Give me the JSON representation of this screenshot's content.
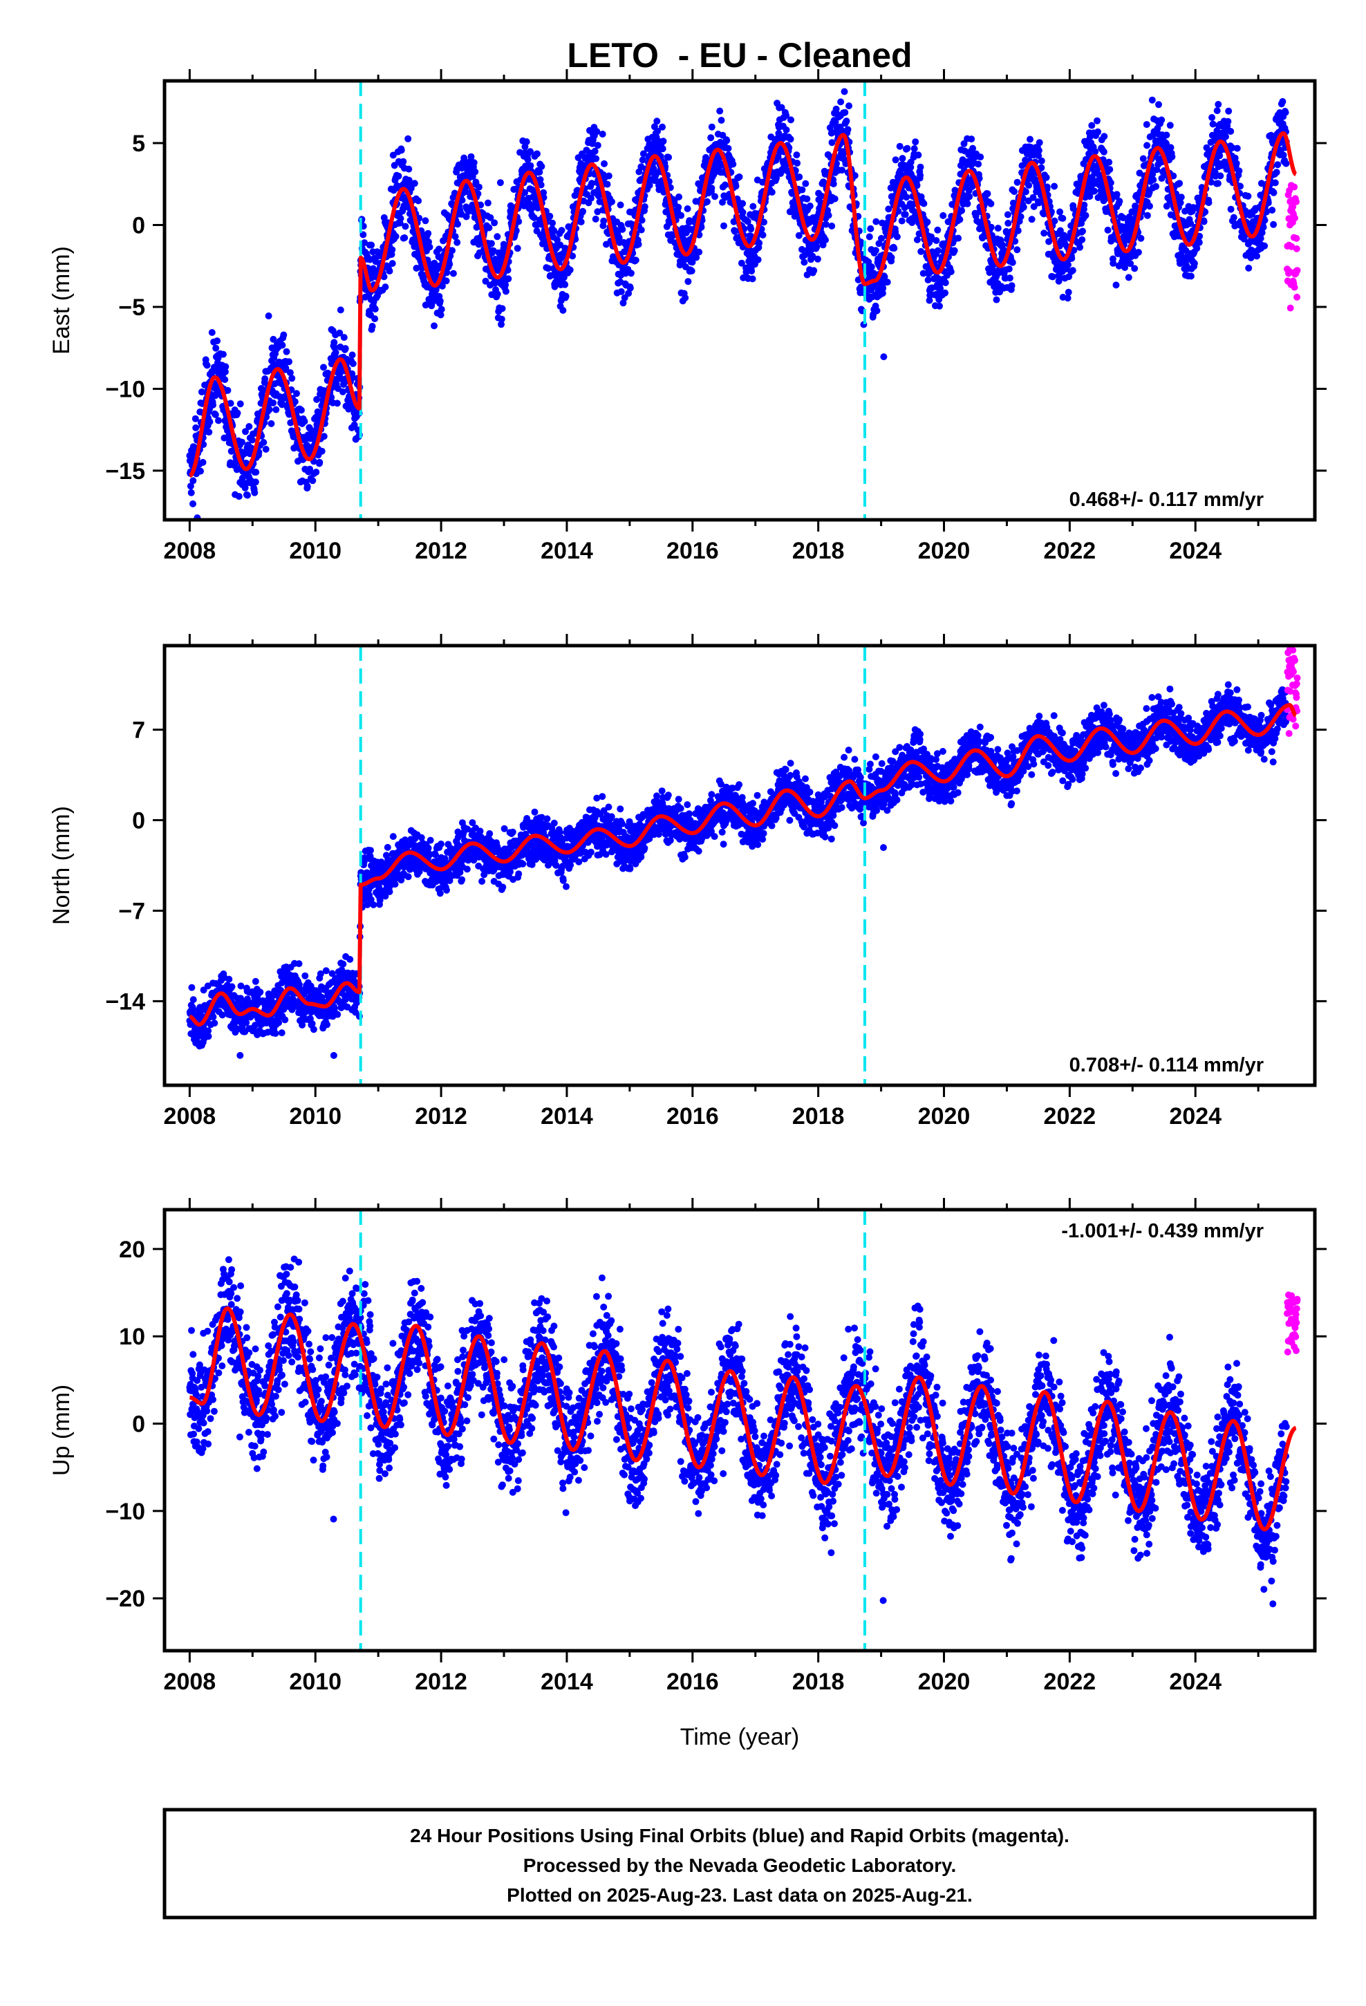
{
  "chart_data": {
    "title": "LETO  - EU - Cleaned",
    "type": "scatter",
    "xlabel": "Time (year)",
    "xlim": [
      2007.6,
      2025.9
    ],
    "xticks": [
      2008,
      2010,
      2012,
      2014,
      2016,
      2018,
      2020,
      2022,
      2024
    ],
    "xtick_labels": [
      "2008",
      "2010",
      "2012",
      "2014",
      "2016",
      "2018",
      "2020",
      "2022",
      "2024"
    ],
    "grid": false,
    "offset_lines_x": [
      2010.72,
      2018.74
    ],
    "colors": {
      "final_orbits": "#0000ff",
      "rapid_orbits": "#ff00ff",
      "model": "#ff0000",
      "offsets": "#00e5ee"
    },
    "panels": [
      {
        "key": "east",
        "ylabel": "East (mm)",
        "ylim": [
          -18,
          8.8
        ],
        "yticks": [
          5,
          0,
          -5,
          -10,
          -15
        ],
        "ytick_labels": [
          "5",
          "0",
          "−5",
          "−10",
          "−15"
        ],
        "rate_text": "0.468+/- 0.117 mm/yr",
        "rate_position": "bottom-right",
        "model": {
          "x": [
            2008.0,
            2008.4,
            2008.9,
            2009.4,
            2009.9,
            2010.4,
            2010.7,
            2010.72,
            2010.9,
            2011.4,
            2011.9,
            2012.4,
            2012.9,
            2013.4,
            2013.9,
            2014.4,
            2014.9,
            2015.4,
            2015.9,
            2016.4,
            2016.9,
            2017.4,
            2017.9,
            2018.4,
            2018.74,
            2018.9,
            2019.4,
            2019.9,
            2020.4,
            2020.9,
            2021.4,
            2021.9,
            2022.4,
            2022.9,
            2023.4,
            2023.9,
            2024.4,
            2024.9,
            2025.4,
            2025.6
          ],
          "y": [
            -15.3,
            -9.3,
            -14.9,
            -8.8,
            -14.3,
            -8.2,
            -11.2,
            -2.0,
            -4.0,
            2.2,
            -3.7,
            2.7,
            -3.2,
            3.2,
            -2.7,
            3.7,
            -2.3,
            4.2,
            -1.8,
            4.6,
            -1.3,
            5.0,
            -0.9,
            5.5,
            -3.6,
            -3.4,
            2.9,
            -2.9,
            3.3,
            -2.5,
            3.8,
            -2.1,
            4.2,
            -1.6,
            4.7,
            -1.2,
            5.1,
            -0.7,
            5.6,
            3.1
          ]
        },
        "scatter": {
          "start": 2008.0,
          "end": 2025.45,
          "step": 0.0042,
          "noise": 1.7
        },
        "rapid": {
          "start": 2025.46,
          "end": 2025.62,
          "y_min": -5.3,
          "y_max": 2.5
        }
      },
      {
        "key": "north",
        "ylabel": "North (mm)",
        "ylim": [
          -20.5,
          13.5
        ],
        "yticks": [
          7,
          0,
          -7,
          -14
        ],
        "ytick_labels": [
          "7",
          "0",
          "−7",
          "−14"
        ],
        "rate_text": "0.708+/- 0.114 mm/yr",
        "rate_position": "bottom-right",
        "model": {
          "x": [
            2008.0,
            2008.15,
            2008.5,
            2008.8,
            2009.0,
            2009.25,
            2009.6,
            2009.9,
            2010.15,
            2010.5,
            2010.7,
            2010.72,
            2011.0,
            2011.5,
            2012.0,
            2012.5,
            2013.0,
            2013.5,
            2014.0,
            2014.5,
            2015.0,
            2015.5,
            2016.0,
            2016.5,
            2017.0,
            2017.5,
            2018.0,
            2018.5,
            2018.74,
            2019.0,
            2019.5,
            2020.0,
            2020.5,
            2021.0,
            2021.5,
            2022.0,
            2022.5,
            2023.0,
            2023.5,
            2024.0,
            2024.5,
            2025.0,
            2025.5,
            2025.6
          ],
          "y": [
            -15.2,
            -15.8,
            -13.4,
            -15.0,
            -14.6,
            -15.1,
            -13.0,
            -14.2,
            -14.4,
            -12.6,
            -13.3,
            -5.0,
            -4.5,
            -2.5,
            -3.8,
            -1.8,
            -3.2,
            -1.2,
            -2.5,
            -0.7,
            -2.0,
            0.3,
            -1.0,
            1.3,
            -0.4,
            2.3,
            0.3,
            3.0,
            1.7,
            2.3,
            4.5,
            3.0,
            5.4,
            3.4,
            6.5,
            4.6,
            7.1,
            5.2,
            7.7,
            5.9,
            8.4,
            6.6,
            8.9,
            8.1
          ]
        },
        "scatter": {
          "start": 2008.0,
          "end": 2025.45,
          "step": 0.0042,
          "noise": 1.3
        },
        "rapid": {
          "start": 2025.46,
          "end": 2025.62,
          "y_min": 6.5,
          "y_max": 13.3
        }
      },
      {
        "key": "up",
        "ylabel": "Up (mm)",
        "ylim": [
          -26,
          24.5
        ],
        "yticks": [
          20,
          10,
          0,
          -10,
          -20
        ],
        "ytick_labels": [
          "20",
          "10",
          "0",
          "−10",
          "−20"
        ],
        "rate_text": "-1.001+/- 0.439 mm/yr",
        "rate_position": "top-right",
        "model": {
          "x": [
            2008.0,
            2008.2,
            2008.6,
            2009.1,
            2009.6,
            2010.1,
            2010.6,
            2011.1,
            2011.6,
            2012.1,
            2012.6,
            2013.1,
            2013.6,
            2014.1,
            2014.6,
            2015.1,
            2015.6,
            2016.1,
            2016.6,
            2017.1,
            2017.6,
            2018.1,
            2018.6,
            2019.1,
            2019.6,
            2020.1,
            2020.6,
            2021.1,
            2021.6,
            2022.1,
            2022.6,
            2023.1,
            2023.6,
            2024.1,
            2024.6,
            2025.1,
            2025.6
          ],
          "y": [
            3.0,
            2.3,
            13.2,
            1.0,
            12.5,
            0.3,
            11.4,
            -0.4,
            11.2,
            -1.3,
            10.0,
            -2.2,
            9.2,
            -3.0,
            8.3,
            -4.2,
            7.2,
            -5.0,
            6.0,
            -5.9,
            5.3,
            -6.8,
            4.3,
            -6.0,
            5.3,
            -7.0,
            4.3,
            -8.0,
            3.6,
            -9.0,
            2.5,
            -10.0,
            1.3,
            -11.0,
            0.3,
            -12.1,
            -0.5
          ]
        },
        "scatter": {
          "start": 2008.0,
          "end": 2025.45,
          "step": 0.0042,
          "noise": 4.3
        },
        "rapid": {
          "start": 2025.46,
          "end": 2025.62,
          "y_min": 8.0,
          "y_max": 14.8
        }
      }
    ]
  },
  "footer": {
    "line1": "24 Hour Positions Using Final Orbits (blue) and Rapid Orbits (magenta).",
    "line2": "Processed by the Nevada Geodetic Laboratory.",
    "line3": "Plotted on 2025-Aug-23. Last data on 2025-Aug-21."
  }
}
